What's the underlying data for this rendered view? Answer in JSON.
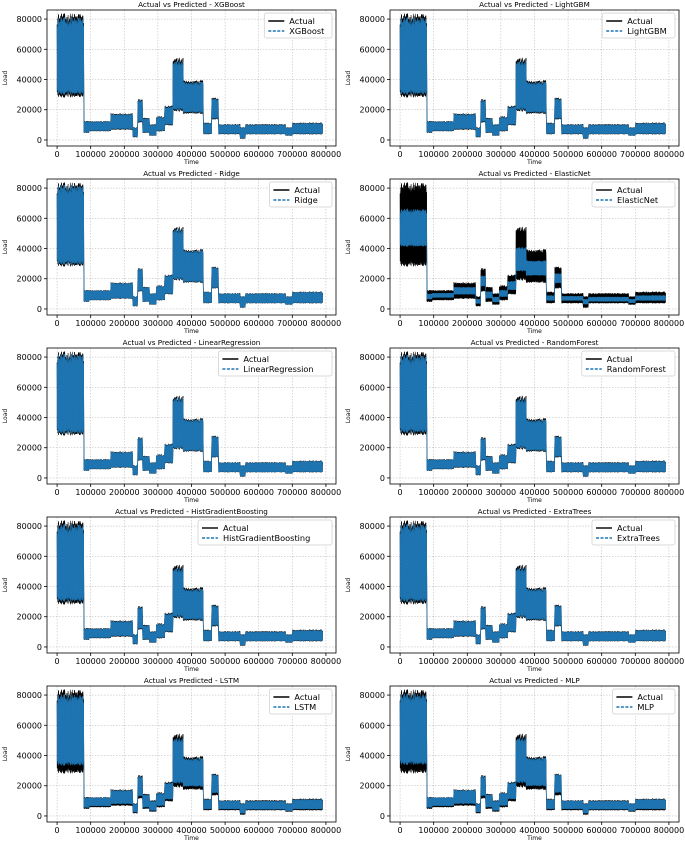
{
  "colors": {
    "actual": "#000000",
    "predicted": "#1f77b4",
    "background": "#ffffff"
  },
  "chart_data": [
    {
      "type": "line",
      "title": "Actual vs Predicted - XGBoost",
      "xlabel": "Time",
      "ylabel": "Load",
      "xlim": [
        -30000,
        830000
      ],
      "ylim": [
        -4000,
        86000
      ],
      "xticks": [
        0,
        100000,
        200000,
        300000,
        400000,
        500000,
        600000,
        700000,
        800000
      ],
      "xtick_labels": [
        "0",
        "100000",
        "200000",
        "300000",
        "400000",
        "500000",
        "600000",
        "700000",
        "800000"
      ],
      "yticks": [
        0,
        20000,
        40000,
        60000,
        80000
      ],
      "ytick_labels": [
        "0",
        "20000",
        "40000",
        "60000",
        "80000"
      ],
      "grid": true,
      "legend_position": "top-right",
      "series": [
        {
          "name": "Actual",
          "style": "solid",
          "color": "#000000",
          "mid_scale": 1.0,
          "amp_scale": 1.0
        },
        {
          "name": "XGBoost",
          "style": "dashed",
          "color": "#1f77b4",
          "mid_scale": 1.0,
          "amp_scale": 0.92
        }
      ]
    },
    {
      "type": "line",
      "title": "Actual vs Predicted - LightGBM",
      "xlabel": "Time",
      "ylabel": "Load",
      "xlim": [
        -30000,
        830000
      ],
      "ylim": [
        -4000,
        86000
      ],
      "xticks": [
        0,
        100000,
        200000,
        300000,
        400000,
        500000,
        600000,
        700000,
        800000
      ],
      "xtick_labels": [
        "0",
        "100000",
        "200000",
        "300000",
        "400000",
        "500000",
        "600000",
        "700000",
        "800000"
      ],
      "yticks": [
        0,
        20000,
        40000,
        60000,
        80000
      ],
      "ytick_labels": [
        "0",
        "20000",
        "40000",
        "60000",
        "80000"
      ],
      "grid": true,
      "legend_position": "top-right",
      "series": [
        {
          "name": "Actual",
          "style": "solid",
          "color": "#000000",
          "mid_scale": 1.0,
          "amp_scale": 1.0
        },
        {
          "name": "LightGBM",
          "style": "dashed",
          "color": "#1f77b4",
          "mid_scale": 1.0,
          "amp_scale": 0.92
        }
      ]
    },
    {
      "type": "line",
      "title": "Actual vs Predicted - Ridge",
      "xlabel": "Time",
      "ylabel": "Load",
      "xlim": [
        -30000,
        830000
      ],
      "ylim": [
        -4000,
        86000
      ],
      "xticks": [
        0,
        100000,
        200000,
        300000,
        400000,
        500000,
        600000,
        700000,
        800000
      ],
      "xtick_labels": [
        "0",
        "100000",
        "200000",
        "300000",
        "400000",
        "500000",
        "600000",
        "700000",
        "800000"
      ],
      "yticks": [
        0,
        20000,
        40000,
        60000,
        80000
      ],
      "ytick_labels": [
        "0",
        "20000",
        "40000",
        "60000",
        "80000"
      ],
      "grid": true,
      "legend_position": "top-right",
      "series": [
        {
          "name": "Actual",
          "style": "solid",
          "color": "#000000",
          "mid_scale": 1.0,
          "amp_scale": 1.0
        },
        {
          "name": "Ridge",
          "style": "dashed",
          "color": "#1f77b4",
          "mid_scale": 1.0,
          "amp_scale": 0.95
        }
      ]
    },
    {
      "type": "line",
      "title": "Actual vs Predicted - ElasticNet",
      "xlabel": "Time",
      "ylabel": "Load",
      "xlim": [
        -30000,
        830000
      ],
      "ylim": [
        -4000,
        86000
      ],
      "xticks": [
        0,
        100000,
        200000,
        300000,
        400000,
        500000,
        600000,
        700000,
        800000
      ],
      "xtick_labels": [
        "0",
        "100000",
        "200000",
        "300000",
        "400000",
        "500000",
        "600000",
        "700000",
        "800000"
      ],
      "yticks": [
        0,
        20000,
        40000,
        60000,
        80000
      ],
      "ytick_labels": [
        "0",
        "20000",
        "40000",
        "60000",
        "80000"
      ],
      "grid": true,
      "legend_position": "top-right",
      "series": [
        {
          "name": "Actual",
          "style": "solid",
          "color": "#000000",
          "mid_scale": 1.0,
          "amp_scale": 1.0
        },
        {
          "name": "ElasticNet",
          "style": "dashed",
          "color": "#1f77b4",
          "mid_scale": 1.0,
          "amp_scale": 0.45
        }
      ]
    },
    {
      "type": "line",
      "title": "Actual vs Predicted - LinearRegression",
      "xlabel": "Time",
      "ylabel": "Load",
      "xlim": [
        -30000,
        830000
      ],
      "ylim": [
        -4000,
        86000
      ],
      "xticks": [
        0,
        100000,
        200000,
        300000,
        400000,
        500000,
        600000,
        700000,
        800000
      ],
      "xtick_labels": [
        "0",
        "100000",
        "200000",
        "300000",
        "400000",
        "500000",
        "600000",
        "700000",
        "800000"
      ],
      "yticks": [
        0,
        20000,
        40000,
        60000,
        80000
      ],
      "ytick_labels": [
        "0",
        "20000",
        "40000",
        "60000",
        "80000"
      ],
      "grid": true,
      "legend_position": "top-right",
      "series": [
        {
          "name": "Actual",
          "style": "solid",
          "color": "#000000",
          "mid_scale": 1.0,
          "amp_scale": 1.0
        },
        {
          "name": "LinearRegression",
          "style": "dashed",
          "color": "#1f77b4",
          "mid_scale": 1.0,
          "amp_scale": 0.95
        }
      ]
    },
    {
      "type": "line",
      "title": "Actual vs Predicted - RandomForest",
      "xlabel": "Time",
      "ylabel": "Load",
      "xlim": [
        -30000,
        830000
      ],
      "ylim": [
        -4000,
        86000
      ],
      "xticks": [
        0,
        100000,
        200000,
        300000,
        400000,
        500000,
        600000,
        700000,
        800000
      ],
      "xtick_labels": [
        "0",
        "100000",
        "200000",
        "300000",
        "400000",
        "500000",
        "600000",
        "700000",
        "800000"
      ],
      "yticks": [
        0,
        20000,
        40000,
        60000,
        80000
      ],
      "ytick_labels": [
        "0",
        "20000",
        "40000",
        "60000",
        "80000"
      ],
      "grid": true,
      "legend_position": "top-right",
      "series": [
        {
          "name": "Actual",
          "style": "solid",
          "color": "#000000",
          "mid_scale": 1.0,
          "amp_scale": 1.0
        },
        {
          "name": "RandomForest",
          "style": "dashed",
          "color": "#1f77b4",
          "mid_scale": 1.0,
          "amp_scale": 0.93
        }
      ]
    },
    {
      "type": "line",
      "title": "Actual vs Predicted - HistGradientBoosting",
      "xlabel": "Time",
      "ylabel": "Load",
      "xlim": [
        -30000,
        830000
      ],
      "ylim": [
        -4000,
        86000
      ],
      "xticks": [
        0,
        100000,
        200000,
        300000,
        400000,
        500000,
        600000,
        700000,
        800000
      ],
      "xtick_labels": [
        "0",
        "100000",
        "200000",
        "300000",
        "400000",
        "500000",
        "600000",
        "700000",
        "800000"
      ],
      "yticks": [
        0,
        20000,
        40000,
        60000,
        80000
      ],
      "ytick_labels": [
        "0",
        "20000",
        "40000",
        "60000",
        "80000"
      ],
      "grid": true,
      "legend_position": "top-right",
      "series": [
        {
          "name": "Actual",
          "style": "solid",
          "color": "#000000",
          "mid_scale": 1.0,
          "amp_scale": 1.0
        },
        {
          "name": "HistGradientBoosting",
          "style": "dashed",
          "color": "#1f77b4",
          "mid_scale": 1.0,
          "amp_scale": 0.92
        }
      ]
    },
    {
      "type": "line",
      "title": "Actual vs Predicted - ExtraTrees",
      "xlabel": "Time",
      "ylabel": "Load",
      "xlim": [
        -30000,
        830000
      ],
      "ylim": [
        -4000,
        86000
      ],
      "xticks": [
        0,
        100000,
        200000,
        300000,
        400000,
        500000,
        600000,
        700000,
        800000
      ],
      "xtick_labels": [
        "0",
        "100000",
        "200000",
        "300000",
        "400000",
        "500000",
        "600000",
        "700000",
        "800000"
      ],
      "yticks": [
        0,
        20000,
        40000,
        60000,
        80000
      ],
      "ytick_labels": [
        "0",
        "20000",
        "40000",
        "60000",
        "80000"
      ],
      "grid": true,
      "legend_position": "top-right",
      "series": [
        {
          "name": "Actual",
          "style": "solid",
          "color": "#000000",
          "mid_scale": 1.0,
          "amp_scale": 1.0
        },
        {
          "name": "ExtraTrees",
          "style": "dashed",
          "color": "#1f77b4",
          "mid_scale": 1.0,
          "amp_scale": 0.93
        }
      ]
    },
    {
      "type": "line",
      "title": "Actual vs Predicted - LSTM",
      "xlabel": "Time",
      "ylabel": "Load",
      "xlim": [
        -30000,
        830000
      ],
      "ylim": [
        -4000,
        86000
      ],
      "xticks": [
        0,
        100000,
        200000,
        300000,
        400000,
        500000,
        600000,
        700000,
        800000
      ],
      "xtick_labels": [
        "0",
        "100000",
        "200000",
        "300000",
        "400000",
        "500000",
        "600000",
        "700000",
        "800000"
      ],
      "yticks": [
        0,
        20000,
        40000,
        60000,
        80000
      ],
      "ytick_labels": [
        "0",
        "20000",
        "40000",
        "60000",
        "80000"
      ],
      "grid": true,
      "legend_position": "top-right",
      "series": [
        {
          "name": "Actual",
          "style": "solid",
          "color": "#000000",
          "mid_scale": 1.0,
          "amp_scale": 1.0
        },
        {
          "name": "LSTM",
          "style": "dashed",
          "color": "#1f77b4",
          "mid_scale": 1.03,
          "amp_scale": 0.85
        }
      ]
    },
    {
      "type": "line",
      "title": "Actual vs Predicted - MLP",
      "xlabel": "Time",
      "ylabel": "Load",
      "xlim": [
        -30000,
        830000
      ],
      "ylim": [
        -4000,
        86000
      ],
      "xticks": [
        0,
        100000,
        200000,
        300000,
        400000,
        500000,
        600000,
        700000,
        800000
      ],
      "xtick_labels": [
        "0",
        "100000",
        "200000",
        "300000",
        "400000",
        "500000",
        "600000",
        "700000",
        "800000"
      ],
      "yticks": [
        0,
        20000,
        40000,
        60000,
        80000
      ],
      "ytick_labels": [
        "0",
        "20000",
        "40000",
        "60000",
        "80000"
      ],
      "grid": true,
      "legend_position": "top-right",
      "series": [
        {
          "name": "Actual",
          "style": "solid",
          "color": "#000000",
          "mid_scale": 1.0,
          "amp_scale": 1.0
        },
        {
          "name": "MLP",
          "style": "dashed",
          "color": "#1f77b4",
          "mid_scale": 1.04,
          "amp_scale": 0.85
        }
      ]
    }
  ],
  "load_profile": [
    {
      "x_start": 0,
      "x_end": 80000,
      "low": 30000,
      "high": 80000,
      "mid": 52000,
      "spikes": [
        [
          20000,
          82000
        ],
        [
          65000,
          83000
        ],
        [
          72000,
          80000
        ]
      ]
    },
    {
      "x_start": 80000,
      "x_end": 95000,
      "low": 5000,
      "high": 12000,
      "mid": 8000
    },
    {
      "x_start": 95000,
      "x_end": 160000,
      "low": 6000,
      "high": 12000,
      "mid": 9000
    },
    {
      "x_start": 160000,
      "x_end": 225000,
      "low": 7000,
      "high": 17000,
      "mid": 12000
    },
    {
      "x_start": 225000,
      "x_end": 240000,
      "low": 2000,
      "high": 8000,
      "mid": 5000
    },
    {
      "x_start": 240000,
      "x_end": 255000,
      "low": 12000,
      "high": 26000,
      "mid": 18000
    },
    {
      "x_start": 255000,
      "x_end": 275000,
      "low": 5000,
      "high": 14000,
      "mid": 9000
    },
    {
      "x_start": 275000,
      "x_end": 295000,
      "low": 3000,
      "high": 10000,
      "mid": 6000
    },
    {
      "x_start": 295000,
      "x_end": 320000,
      "low": 6000,
      "high": 15000,
      "mid": 10000
    },
    {
      "x_start": 320000,
      "x_end": 345000,
      "low": 10000,
      "high": 22000,
      "mid": 15000
    },
    {
      "x_start": 345000,
      "x_end": 375000,
      "low": 20000,
      "high": 52000,
      "mid": 30000
    },
    {
      "x_start": 375000,
      "x_end": 435000,
      "low": 18000,
      "high": 38000,
      "mid": 26000
    },
    {
      "x_start": 435000,
      "x_end": 460000,
      "low": 4000,
      "high": 11000,
      "mid": 7000
    },
    {
      "x_start": 460000,
      "x_end": 480000,
      "low": 14000,
      "high": 27000,
      "mid": 20000
    },
    {
      "x_start": 480000,
      "x_end": 545000,
      "low": 4000,
      "high": 10000,
      "mid": 7000
    },
    {
      "x_start": 545000,
      "x_end": 560000,
      "low": 1000,
      "high": 8000,
      "mid": 5000
    },
    {
      "x_start": 560000,
      "x_end": 680000,
      "low": 4000,
      "high": 10000,
      "mid": 6000
    },
    {
      "x_start": 680000,
      "x_end": 700000,
      "low": 3000,
      "high": 8000,
      "mid": 5000
    },
    {
      "x_start": 700000,
      "x_end": 790000,
      "low": 4000,
      "high": 11000,
      "mid": 7000
    }
  ]
}
